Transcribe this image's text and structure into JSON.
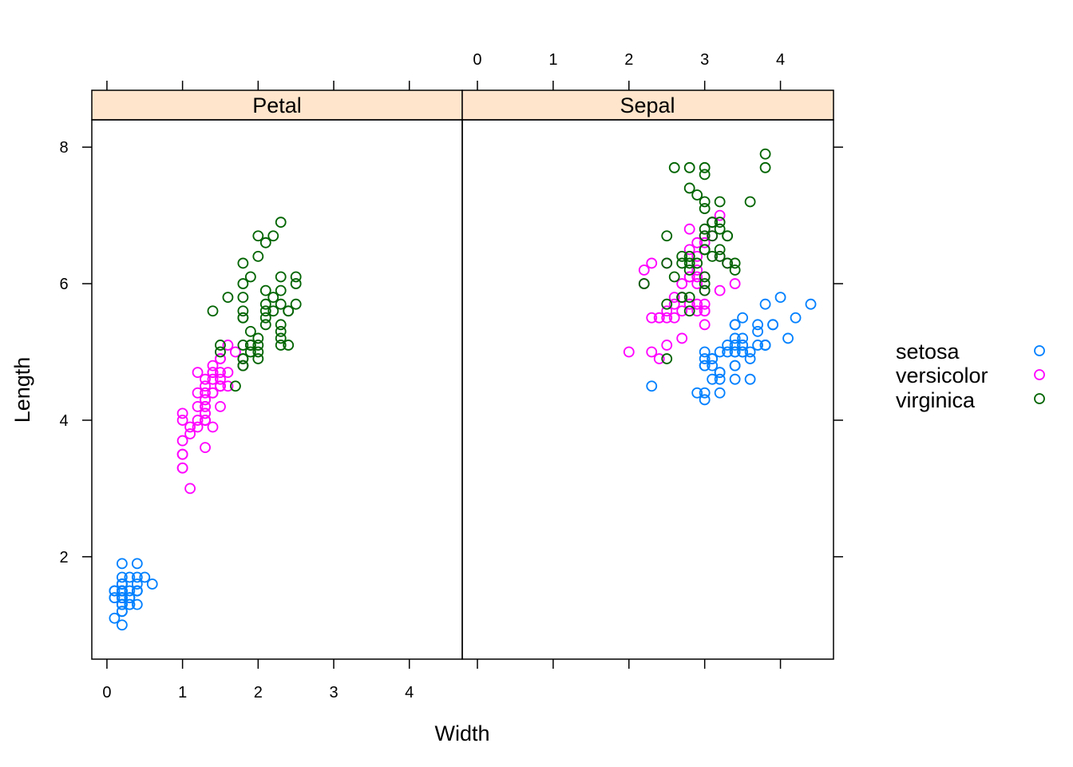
{
  "chart_data": {
    "type": "scatter",
    "xlabel": "Width",
    "ylabel": "Length",
    "xlim": [
      -0.2,
      4.7
    ],
    "ylim": [
      0.5,
      8.4
    ],
    "x_ticks": [
      0,
      1,
      2,
      3,
      4
    ],
    "y_ticks": [
      2,
      4,
      6,
      8
    ],
    "grid": false,
    "legend_position": "right",
    "colors": {
      "setosa": "#0080ff",
      "versicolor": "#ff00ff",
      "virginica": "#006400",
      "strip": "#ffe5cc"
    },
    "panels": [
      {
        "name": "Petal",
        "series": [
          {
            "name": "setosa",
            "x": [
              0.2,
              0.2,
              0.2,
              0.2,
              0.2,
              0.4,
              0.3,
              0.2,
              0.2,
              0.1,
              0.2,
              0.2,
              0.1,
              0.1,
              0.2,
              0.4,
              0.4,
              0.3,
              0.3,
              0.3,
              0.2,
              0.4,
              0.2,
              0.5,
              0.2,
              0.2,
              0.4,
              0.2,
              0.2,
              0.2,
              0.2,
              0.4,
              0.1,
              0.2,
              0.2,
              0.2,
              0.2,
              0.1,
              0.2,
              0.2,
              0.3,
              0.3,
              0.2,
              0.6,
              0.4,
              0.3,
              0.2,
              0.2,
              0.2,
              0.2
            ],
            "y": [
              1.4,
              1.4,
              1.3,
              1.5,
              1.4,
              1.7,
              1.4,
              1.5,
              1.4,
              1.5,
              1.5,
              1.6,
              1.4,
              1.1,
              1.2,
              1.5,
              1.3,
              1.4,
              1.7,
              1.5,
              1.7,
              1.5,
              1.0,
              1.7,
              1.9,
              1.6,
              1.6,
              1.5,
              1.4,
              1.6,
              1.6,
              1.5,
              1.5,
              1.4,
              1.5,
              1.2,
              1.3,
              1.4,
              1.3,
              1.5,
              1.3,
              1.3,
              1.3,
              1.6,
              1.9,
              1.4,
              1.6,
              1.4,
              1.5,
              1.4
            ]
          },
          {
            "name": "versicolor",
            "x": [
              1.4,
              1.5,
              1.5,
              1.3,
              1.5,
              1.3,
              1.6,
              1.0,
              1.3,
              1.4,
              1.0,
              1.5,
              1.0,
              1.4,
              1.3,
              1.4,
              1.5,
              1.0,
              1.5,
              1.1,
              1.8,
              1.3,
              1.5,
              1.2,
              1.3,
              1.4,
              1.4,
              1.7,
              1.5,
              1.0,
              1.1,
              1.0,
              1.2,
              1.6,
              1.5,
              1.6,
              1.5,
              1.3,
              1.3,
              1.3,
              1.2,
              1.4,
              1.2,
              1.0,
              1.3,
              1.2,
              1.3,
              1.3,
              1.1,
              1.3
            ],
            "y": [
              4.7,
              4.5,
              4.9,
              4.0,
              4.6,
              4.5,
              4.7,
              3.3,
              4.6,
              3.9,
              3.5,
              4.2,
              4.0,
              4.7,
              3.6,
              4.4,
              4.5,
              4.1,
              4.5,
              3.9,
              4.8,
              4.0,
              4.9,
              4.7,
              4.3,
              4.4,
              4.8,
              5.0,
              4.5,
              3.5,
              3.8,
              3.7,
              3.9,
              5.1,
              4.5,
              4.5,
              4.7,
              4.4,
              4.1,
              4.0,
              4.4,
              4.6,
              4.0,
              3.3,
              4.2,
              4.2,
              4.2,
              4.3,
              3.0,
              4.1
            ]
          },
          {
            "name": "virginica",
            "x": [
              2.5,
              1.9,
              2.1,
              1.8,
              2.2,
              2.1,
              1.7,
              1.8,
              1.8,
              2.5,
              2.0,
              1.9,
              2.1,
              2.0,
              2.4,
              2.3,
              1.8,
              2.2,
              2.3,
              1.5,
              2.3,
              2.0,
              2.0,
              1.8,
              2.1,
              1.8,
              1.8,
              1.8,
              2.1,
              1.6,
              1.9,
              2.0,
              2.2,
              1.5,
              1.4,
              2.3,
              2.4,
              1.8,
              1.8,
              2.1,
              2.4,
              2.3,
              1.9,
              2.3,
              2.5,
              2.3,
              1.9,
              2.0,
              2.3,
              1.8
            ],
            "y": [
              6.0,
              5.1,
              5.9,
              5.6,
              5.8,
              6.6,
              4.5,
              6.3,
              5.8,
              6.1,
              5.1,
              5.3,
              5.5,
              5.0,
              5.1,
              5.3,
              5.5,
              6.7,
              6.9,
              5.0,
              5.7,
              4.9,
              6.7,
              4.9,
              5.7,
              6.0,
              4.8,
              4.9,
              5.6,
              5.8,
              6.1,
              6.4,
              5.6,
              5.1,
              5.6,
              6.1,
              5.6,
              5.5,
              4.8,
              5.4,
              5.6,
              5.1,
              5.1,
              5.9,
              5.7,
              5.2,
              5.0,
              5.2,
              5.4,
              5.1
            ]
          }
        ]
      },
      {
        "name": "Sepal",
        "series": [
          {
            "name": "setosa",
            "x": [
              3.5,
              3.0,
              3.2,
              3.1,
              3.6,
              3.9,
              3.4,
              3.4,
              2.9,
              3.1,
              3.7,
              3.4,
              3.0,
              3.0,
              4.0,
              4.4,
              3.9,
              3.5,
              3.8,
              3.8,
              3.4,
              3.7,
              3.6,
              3.3,
              3.4,
              3.0,
              3.4,
              3.5,
              3.4,
              3.2,
              3.1,
              3.4,
              4.1,
              4.2,
              3.1,
              3.2,
              3.5,
              3.6,
              3.0,
              3.4,
              3.5,
              2.3,
              3.2,
              3.5,
              3.8,
              3.0,
              3.8,
              3.2,
              3.7,
              3.3
            ],
            "y": [
              5.1,
              4.9,
              4.7,
              4.6,
              5.0,
              5.4,
              4.6,
              5.0,
              4.4,
              4.9,
              5.4,
              4.8,
              4.8,
              4.3,
              5.8,
              5.7,
              5.4,
              5.1,
              5.7,
              5.1,
              5.4,
              5.1,
              4.6,
              5.1,
              4.8,
              5.0,
              5.0,
              5.2,
              5.2,
              4.7,
              4.8,
              5.4,
              5.2,
              5.5,
              4.9,
              5.0,
              5.5,
              4.9,
              4.4,
              5.1,
              5.0,
              4.5,
              4.4,
              5.0,
              5.1,
              4.8,
              5.1,
              4.6,
              5.3,
              5.0
            ]
          },
          {
            "name": "versicolor",
            "x": [
              3.2,
              3.2,
              3.1,
              2.3,
              2.8,
              2.8,
              3.3,
              2.4,
              2.9,
              2.7,
              2.0,
              3.0,
              2.2,
              2.9,
              2.9,
              3.1,
              3.0,
              2.7,
              2.2,
              2.5,
              3.2,
              2.8,
              2.5,
              2.8,
              2.9,
              3.0,
              2.8,
              3.0,
              2.9,
              2.6,
              2.4,
              2.4,
              2.7,
              2.7,
              3.0,
              3.4,
              3.1,
              2.3,
              3.0,
              2.5,
              2.6,
              3.0,
              2.6,
              2.3,
              2.7,
              3.0,
              2.9,
              2.9,
              2.5,
              2.8
            ],
            "y": [
              7.0,
              6.4,
              6.9,
              5.5,
              6.5,
              5.7,
              6.3,
              4.9,
              6.6,
              5.2,
              5.0,
              5.9,
              6.0,
              6.1,
              5.6,
              6.7,
              5.6,
              5.8,
              6.2,
              5.6,
              5.9,
              6.1,
              6.3,
              6.1,
              6.4,
              6.6,
              6.8,
              6.7,
              6.0,
              5.7,
              5.5,
              5.5,
              5.8,
              6.0,
              5.4,
              6.0,
              6.7,
              6.3,
              5.6,
              5.5,
              5.5,
              6.1,
              5.8,
              5.0,
              5.6,
              5.7,
              5.7,
              6.2,
              5.1,
              5.7
            ]
          },
          {
            "name": "virginica",
            "x": [
              3.3,
              2.7,
              3.0,
              2.9,
              3.0,
              3.0,
              2.5,
              2.9,
              2.5,
              3.6,
              3.2,
              2.7,
              3.0,
              2.5,
              2.8,
              3.2,
              3.0,
              3.8,
              2.6,
              2.2,
              3.2,
              2.8,
              2.8,
              2.7,
              3.3,
              3.2,
              2.8,
              3.0,
              2.8,
              3.0,
              2.8,
              3.8,
              2.8,
              2.8,
              2.6,
              3.0,
              3.4,
              3.1,
              3.0,
              3.1,
              3.1,
              3.1,
              2.7,
              3.2,
              3.3,
              3.0,
              2.5,
              3.0,
              3.4,
              3.0
            ],
            "y": [
              6.3,
              5.8,
              7.1,
              6.3,
              6.5,
              7.6,
              4.9,
              7.3,
              6.7,
              7.2,
              6.5,
              6.4,
              6.8,
              5.7,
              5.8,
              6.4,
              6.5,
              7.7,
              7.7,
              6.0,
              6.9,
              5.6,
              7.7,
              6.3,
              6.7,
              7.2,
              6.2,
              6.1,
              6.4,
              7.2,
              7.4,
              7.9,
              6.4,
              6.3,
              6.1,
              7.7,
              6.3,
              6.4,
              6.0,
              6.9,
              6.7,
              6.9,
              5.8,
              6.8,
              6.7,
              6.7,
              6.3,
              6.5,
              6.2,
              5.9
            ]
          }
        ]
      }
    ],
    "legend": [
      "setosa",
      "versicolor",
      "virginica"
    ]
  }
}
